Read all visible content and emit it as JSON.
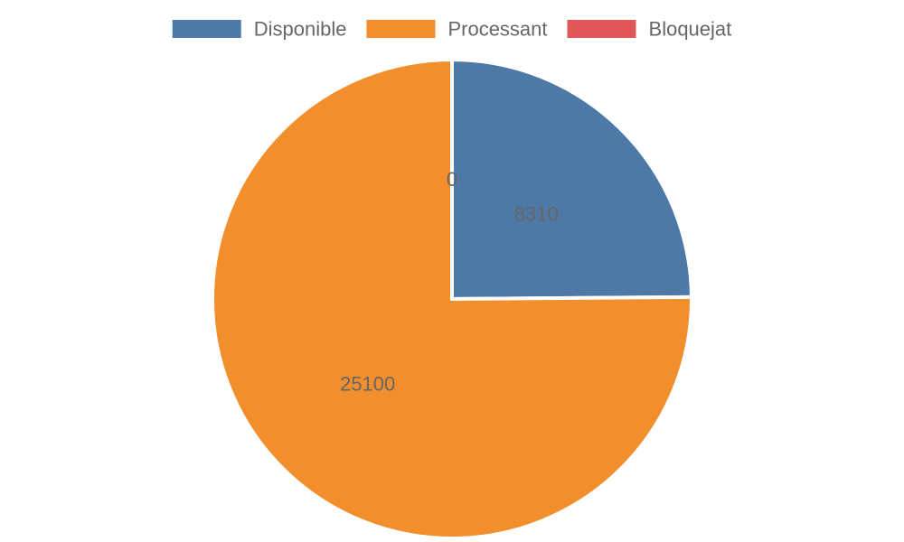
{
  "chart_data": {
    "type": "pie",
    "title": "",
    "legend_position": "top",
    "slices": [
      {
        "label": "Disponible",
        "value": 8310,
        "color": "#4e79a7"
      },
      {
        "label": "Processant",
        "value": 25100,
        "color": "#f28e2c"
      },
      {
        "label": "Bloquejat",
        "value": 0,
        "color": "#e15759"
      }
    ]
  }
}
